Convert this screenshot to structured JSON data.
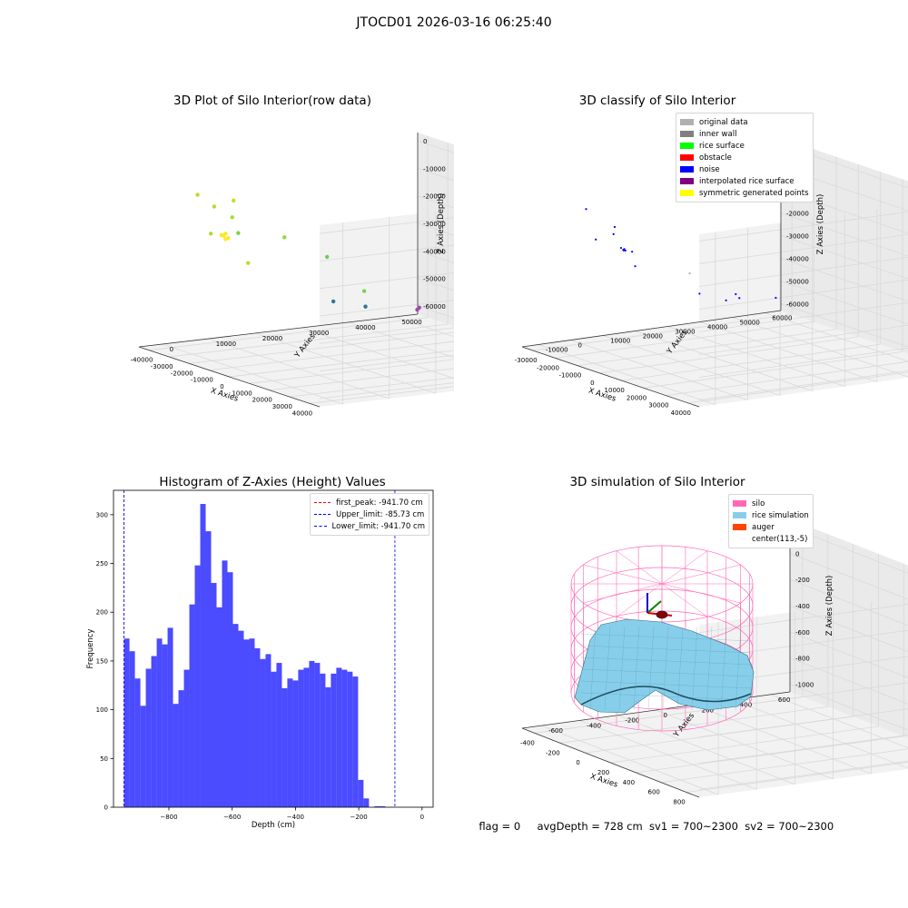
{
  "figure": {
    "suptitle": "JTOCD01 2026-03-16 06:25:40",
    "footer": {
      "flag": "flag = 0",
      "avg_depth": "avgDepth = 728 cm",
      "sv1": "sv1 = 700~2300",
      "sv2": "sv2 = 700~2300"
    }
  },
  "colors": {
    "pane": "#f2f2f2",
    "grid": "#d9d9d9",
    "hist": "#4b4bff",
    "silo": "#ff69b4",
    "rice": "#87ceeb",
    "auger": "#ff4500"
  },
  "chart_data": [
    {
      "id": "raw",
      "type": "scatter3d",
      "title": "3D Plot of Silo Interior(row data)",
      "xlabel": "X Axies",
      "ylabel": "Y Axies",
      "zlabel": "Z Axies (Depth)",
      "xticks": [
        "-40000",
        "-30000",
        "-20000",
        "-10000",
        "0",
        "10000",
        "20000",
        "30000",
        "40000"
      ],
      "yticks": [
        "0",
        "10000",
        "20000",
        "30000",
        "40000",
        "50000"
      ],
      "zticks": [
        "0",
        "-10000",
        "-20000",
        "-30000",
        "-40000",
        "-50000",
        "-60000"
      ],
      "points": [
        {
          "x": -32000,
          "y": 2000,
          "z": -6000,
          "c": "#b5de2b"
        },
        {
          "x": -26000,
          "y": 3000,
          "z": -9000,
          "c": "#b5de2b"
        },
        {
          "x": -21000,
          "y": 5000,
          "z": -6000,
          "c": "#c2df23"
        },
        {
          "x": -30000,
          "y": 4000,
          "z": -20000,
          "c": "#b5de2b"
        },
        {
          "x": -24000,
          "y": 6000,
          "z": -13000,
          "c": "#a8db34"
        },
        {
          "x": -21000,
          "y": 6000,
          "z": -18000,
          "c": "#7ad151"
        },
        {
          "x": -23000,
          "y": 9000,
          "z": -30000,
          "c": "#b5de2b"
        },
        {
          "x": -27000,
          "y": 5000,
          "z": -20000,
          "c": "#fde725"
        },
        {
          "x": -26000,
          "y": 5000,
          "z": -20000,
          "c": "#fde725"
        },
        {
          "x": -25000,
          "y": 5000,
          "z": -21000,
          "c": "#fde725"
        },
        {
          "x": -26000,
          "y": 6000,
          "z": -21000,
          "c": "#fde725"
        },
        {
          "x": -25000,
          "y": 5000,
          "z": -19000,
          "c": "#fde725"
        },
        {
          "x": 2000,
          "y": 6000,
          "z": -14000,
          "c": "#8fd744"
        },
        {
          "x": 14000,
          "y": 10000,
          "z": -19000,
          "c": "#6ccd5a"
        },
        {
          "x": -6000,
          "y": 20000,
          "z": -42000,
          "c": "#2a788e"
        },
        {
          "x": 10000,
          "y": 20000,
          "z": -40000,
          "c": "#2a788e"
        },
        {
          "x": 14000,
          "y": 18000,
          "z": -33000,
          "c": "#7ad151"
        },
        {
          "x": 8000,
          "y": 32000,
          "z": -44000,
          "c": "#9e4ba8"
        },
        {
          "x": 9000,
          "y": 32000,
          "z": -43000,
          "c": "#9e4ba8"
        }
      ]
    },
    {
      "id": "classify",
      "type": "scatter3d",
      "title": "3D classify of Silo Interior",
      "xlabel": "X Axies",
      "ylabel": "Y Axies",
      "zlabel": "Z Axies (Depth)",
      "xticks": [
        "-30000",
        "-20000",
        "-10000",
        "0",
        "10000",
        "20000",
        "30000",
        "40000"
      ],
      "yticks": [
        "-10000",
        "0",
        "10000",
        "20000",
        "30000",
        "40000",
        "50000",
        "60000"
      ],
      "zticks": [
        "10000",
        "0",
        "-10000",
        "-20000",
        "-30000",
        "-40000",
        "-50000",
        "-60000"
      ],
      "legend": [
        {
          "label": "original data",
          "color": "#b0b0b0"
        },
        {
          "label": "inner wall",
          "color": "#808080"
        },
        {
          "label": "rice surface",
          "color": "#00ff00"
        },
        {
          "label": "obstacle",
          "color": "#ff0000"
        },
        {
          "label": "noise",
          "color": "#0000ff"
        },
        {
          "label": "interpolated rice surface",
          "color": "#800080"
        },
        {
          "label": "symmetric generated points",
          "color": "#ffff00"
        }
      ],
      "points": [
        {
          "x": -28000,
          "y": 0,
          "z": -3000,
          "c": "#0000ff"
        },
        {
          "x": -28000,
          "y": 3000,
          "z": -17000,
          "c": "#0000ff"
        },
        {
          "x": -20000,
          "y": 3000,
          "z": -12000,
          "c": "#0000ff"
        },
        {
          "x": -18000,
          "y": 2000,
          "z": -8000,
          "c": "#0000ff"
        },
        {
          "x": -21000,
          "y": 6000,
          "z": -19000,
          "c": "#0000ff"
        },
        {
          "x": -20000,
          "y": 6000,
          "z": -19500,
          "c": "#0000ff"
        },
        {
          "x": -19500,
          "y": 6000,
          "z": -19000,
          "c": "#0000ff"
        },
        {
          "x": -19000,
          "y": 6000,
          "z": -19500,
          "c": "#0000ff"
        },
        {
          "x": -20500,
          "y": 6500,
          "z": -20000,
          "c": "#0000ff"
        },
        {
          "x": -16000,
          "y": 6000,
          "z": -19000,
          "c": "#0000ff"
        },
        {
          "x": -19000,
          "y": 9000,
          "z": -27000,
          "c": "#0000ff"
        },
        {
          "x": 10000,
          "y": 6000,
          "z": -20000,
          "c": "#b0b0b0"
        },
        {
          "x": 25000,
          "y": 10000,
          "z": -25000,
          "c": "#0000ff"
        },
        {
          "x": -6000,
          "y": 20000,
          "z": -37000,
          "c": "#0000ff"
        },
        {
          "x": 6000,
          "y": 20000,
          "z": -36000,
          "c": "#0000ff"
        },
        {
          "x": 12000,
          "y": 20000,
          "z": -33000,
          "c": "#0000ff"
        },
        {
          "x": 8000,
          "y": 34000,
          "z": -37000,
          "c": "#0000ff"
        }
      ]
    },
    {
      "id": "hist",
      "type": "bar",
      "title": "Histogram of Z-Axies (Height) Values",
      "xlabel": "Depth (cm)",
      "ylabel": "Frequency",
      "xlim": [
        -975,
        35
      ],
      "ylim": [
        0,
        325
      ],
      "xticks": [
        -800,
        -600,
        -400,
        -200,
        0
      ],
      "yticks": [
        0,
        50,
        100,
        150,
        200,
        250,
        300
      ],
      "bin_start": -941.7,
      "bin_width": 17.2,
      "values": [
        173,
        160,
        132,
        104,
        142,
        155,
        173,
        167,
        184,
        106,
        120,
        141,
        208,
        248,
        311,
        283,
        230,
        205,
        253,
        241,
        188,
        181,
        172,
        173,
        163,
        152,
        157,
        139,
        148,
        122,
        132,
        130,
        141,
        143,
        150,
        148,
        137,
        123,
        137,
        143,
        141,
        139,
        134,
        28,
        9,
        0,
        1,
        1,
        0
      ],
      "lines": [
        {
          "label": "first_peak: -941.70 cm",
          "x": -941.7,
          "color": "#ff0000"
        },
        {
          "label": "Upper_limit: -85.73 cm",
          "x": -85.73,
          "color": "#0000ff"
        },
        {
          "label": "Lower_limit: -941.70 cm",
          "x": -941.7,
          "color": "#0000ff"
        }
      ]
    },
    {
      "id": "sim",
      "type": "surface3d",
      "title": "3D simulation of Silo Interior",
      "xlabel": "X Axies",
      "ylabel": "Y Axies",
      "zlabel": "Z Axies (Depth)",
      "xticks": [
        "-400",
        "-200",
        "0",
        "200",
        "400",
        "600",
        "800"
      ],
      "yticks": [
        "-600",
        "-400",
        "-200",
        "0",
        "200",
        "400",
        "600"
      ],
      "zticks": [
        "200",
        "0",
        "-200",
        "-400",
        "-600",
        "-800",
        "-1000"
      ],
      "legend": [
        {
          "label": "silo",
          "color": "#ff69b4"
        },
        {
          "label": "rice simulation",
          "color": "#87ceeb"
        },
        {
          "label": "auger",
          "color": "#ff4500"
        },
        {
          "label": "center(113,-5)",
          "color": "#ffffff"
        }
      ]
    }
  ]
}
